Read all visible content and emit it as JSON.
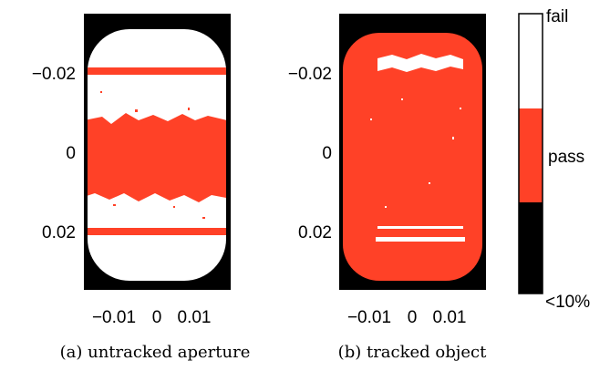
{
  "colors": {
    "background": "#000000",
    "pass": "#ff4127",
    "fail": "#ffffff",
    "ink": "#000000"
  },
  "panels": [
    {
      "caption": "(a) untracked aperture",
      "y_ticks": [
        "−0.02",
        "0",
        "0.02"
      ],
      "x_ticks": [
        "−0.01",
        "0",
        "0.01"
      ]
    },
    {
      "caption": "(b) tracked object",
      "y_ticks": [
        "−0.02",
        "0",
        "0.02"
      ],
      "x_ticks": [
        "−0.01",
        "0",
        "0.01"
      ]
    }
  ],
  "colorbar": {
    "labels": [
      "fail",
      "pass",
      "<10%"
    ]
  }
}
